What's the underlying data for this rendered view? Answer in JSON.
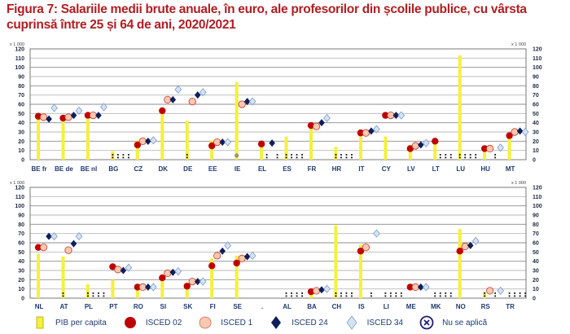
{
  "title": "Figura 7: Salariile medii brute anuale, în euro, ale profesorilor din școlile publice, cu vârsta cuprinsă între 25 și 64 de ani, 2020/2021",
  "colors": {
    "gdp_bar": "#f5f03c",
    "isced02": "#c00000",
    "isced1_fill": "#f8c9b0",
    "isced1_stroke": "#c0392b",
    "isced24": "#0d1f5c",
    "isced34_fill": "#d4e3f5",
    "isced34_stroke": "#7f9cc6",
    "na_symbol": "#1f1f7a",
    "grid": "#a6a6a6"
  },
  "legend": [
    {
      "key": "gdp",
      "label": "PIB per capita",
      "icon": "yellow-bar-icon"
    },
    {
      "key": "isced02",
      "label": "ISCED 02",
      "icon": "red-circle-icon"
    },
    {
      "key": "isced1",
      "label": "ISCED 1",
      "icon": "peach-circle-icon"
    },
    {
      "key": "isced24",
      "label": "ISCED 24",
      "icon": "navy-diamond-icon"
    },
    {
      "key": "isced34",
      "label": "ISCED 34",
      "icon": "lightblue-diamond-icon"
    },
    {
      "key": "na",
      "label": "Nu se aplică",
      "icon": "circled-x-icon"
    }
  ],
  "chart_data": [
    {
      "type": "bar",
      "title": "",
      "unit_label": "x 1 000",
      "ylim": [
        0,
        120
      ],
      "yticks": [
        0,
        10,
        20,
        30,
        40,
        50,
        60,
        70,
        80,
        90,
        100,
        110,
        120
      ],
      "grid": true,
      "categories": [
        "BE fr",
        "BE de",
        "BE nl",
        "BG",
        "CZ",
        "DK",
        "DE",
        "EE",
        "IE",
        "EL",
        "ES",
        "FR",
        "HR",
        "IT",
        "CY",
        "LV",
        "LT",
        "LU",
        "HU",
        "MT"
      ],
      "series": [
        {
          "name": "PIB per capita",
          "kind": "bar",
          "values": [
            44,
            44,
            44,
            9,
            21,
            52,
            42,
            21,
            84,
            18,
            25,
            36,
            14,
            29,
            25,
            16,
            20,
            113,
            14,
            27
          ]
        },
        {
          "name": "ISCED 02",
          "kind": "circle",
          "values": [
            47,
            45,
            48,
            null,
            16,
            53,
            null,
            15,
            null,
            17,
            null,
            37,
            null,
            29,
            48,
            12,
            20,
            null,
            12,
            26
          ]
        },
        {
          "name": "ISCED 1",
          "kind": "circle",
          "values": [
            46,
            46,
            48,
            null,
            20,
            65,
            63,
            19,
            60,
            null,
            null,
            36,
            null,
            29,
            48,
            15,
            null,
            null,
            12,
            30
          ]
        },
        {
          "name": "ISCED 24",
          "kind": "diamond",
          "values": [
            44,
            48,
            48,
            null,
            20,
            65,
            70,
            19,
            63,
            18,
            null,
            40,
            null,
            31,
            48,
            16,
            null,
            null,
            null,
            31
          ]
        },
        {
          "name": "ISCED 34",
          "kind": "diamond",
          "values": [
            56,
            53,
            57,
            null,
            21,
            76,
            73,
            19,
            63,
            null,
            null,
            45,
            null,
            33,
            48,
            18,
            null,
            null,
            13,
            30
          ]
        }
      ],
      "not_available": {
        "BG": [
          0,
          1,
          2,
          3
        ],
        "DE": [
          0
        ],
        "IE": [],
        "EL": [
          1,
          3
        ],
        "ES": [
          0,
          1,
          2,
          3
        ],
        "HR": [
          0,
          1,
          2,
          3
        ],
        "LT": [
          1,
          2,
          3
        ],
        "LU": [
          0,
          1,
          2,
          3
        ],
        "HU": [
          2
        ]
      },
      "not_applicable": {
        "IE": [
          0
        ]
      }
    },
    {
      "type": "bar",
      "title": "",
      "unit_label": "x 1 000",
      "ylim": [
        0,
        120
      ],
      "yticks": [
        0,
        10,
        20,
        30,
        40,
        50,
        60,
        70,
        80,
        90,
        100,
        110,
        120
      ],
      "grid": true,
      "categories": [
        "NL",
        "AT",
        "PL",
        "PT",
        "RO",
        "SI",
        "SK",
        "FI",
        "SE",
        ".",
        "AL",
        "BA",
        "CH",
        "IS",
        "LI",
        "ME",
        "MK",
        "NO",
        "RS",
        "TR"
      ],
      "series": [
        {
          "name": "PIB per capita",
          "kind": "bar",
          "values": [
            48,
            45,
            15,
            20,
            10,
            22,
            15,
            43,
            46,
            null,
            null,
            7,
            79,
            58,
            null,
            null,
            null,
            75,
            7,
            null
          ]
        },
        {
          "name": "ISCED 02",
          "kind": "circle",
          "values": [
            55,
            null,
            null,
            34,
            12,
            22,
            13,
            35,
            38,
            null,
            null,
            7,
            null,
            51,
            null,
            12,
            null,
            51,
            null,
            null
          ]
        },
        {
          "name": "ISCED 1",
          "kind": "circle",
          "values": [
            55,
            52,
            null,
            31,
            12,
            27,
            18,
            46,
            43,
            null,
            null,
            8,
            null,
            55,
            null,
            12,
            null,
            56,
            8,
            null
          ]
        },
        {
          "name": "ISCED 24",
          "kind": "diamond",
          "values": [
            67,
            59,
            null,
            30,
            12,
            28,
            18,
            51,
            45,
            null,
            null,
            9,
            null,
            null,
            null,
            12,
            null,
            57,
            null,
            null
          ]
        },
        {
          "name": "ISCED 34",
          "kind": "diamond",
          "values": [
            67,
            67,
            null,
            33,
            12,
            29,
            18,
            57,
            46,
            null,
            null,
            10,
            null,
            70,
            null,
            12,
            null,
            62,
            8,
            null
          ]
        }
      ],
      "not_available": {
        "AT": [
          0
        ],
        "PL": [
          0,
          1,
          2,
          3
        ],
        "AL": [
          0,
          1,
          2,
          3
        ],
        "CH": [
          0,
          1,
          2,
          3
        ],
        "IS": [
          2
        ],
        "LI": [
          0,
          1,
          2,
          3
        ],
        "MK": [
          0,
          1,
          2,
          3
        ],
        "RS": [
          0,
          2
        ],
        "TR": [
          0,
          1,
          2,
          3
        ]
      },
      "not_applicable": {}
    }
  ]
}
